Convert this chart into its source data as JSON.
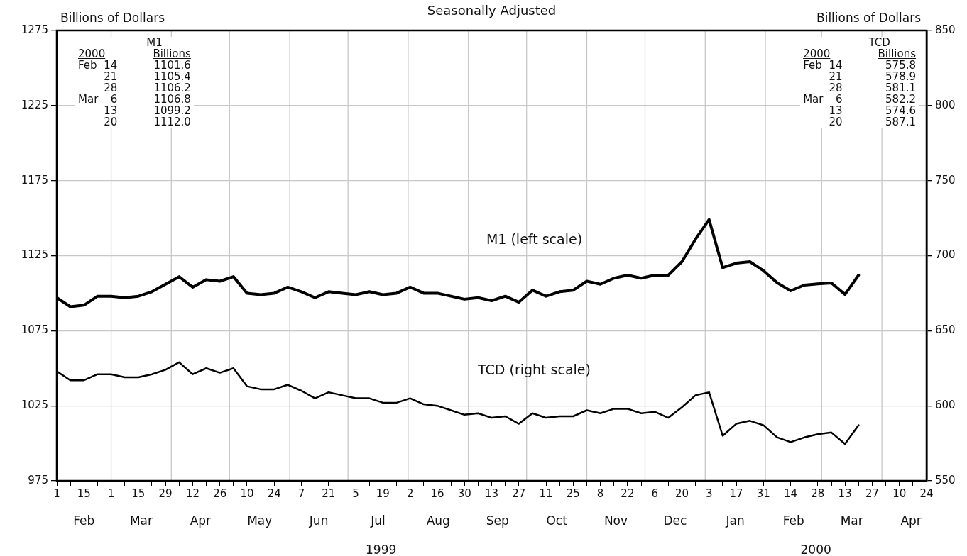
{
  "chart_data": {
    "type": "line",
    "title": "Seasonally Adjusted",
    "ylabel": "Billions of Dollars",
    "y2label": "Billions of Dollars",
    "legend": false,
    "grid": "y",
    "marker": "none",
    "line_style": "solid",
    "x": [
      "1999-02-01",
      "1999-02-08",
      "1999-02-15",
      "1999-02-22",
      "1999-03-01",
      "1999-03-08",
      "1999-03-15",
      "1999-03-22",
      "1999-03-29",
      "1999-04-05",
      "1999-04-12",
      "1999-04-19",
      "1999-04-26",
      "1999-05-03",
      "1999-05-10",
      "1999-05-17",
      "1999-05-24",
      "1999-05-31",
      "1999-06-07",
      "1999-06-14",
      "1999-06-21",
      "1999-06-28",
      "1999-07-05",
      "1999-07-12",
      "1999-07-19",
      "1999-07-26",
      "1999-08-02",
      "1999-08-09",
      "1999-08-16",
      "1999-08-23",
      "1999-08-30",
      "1999-09-06",
      "1999-09-13",
      "1999-09-20",
      "1999-09-27",
      "1999-10-04",
      "1999-10-11",
      "1999-10-18",
      "1999-10-25",
      "1999-11-01",
      "1999-11-08",
      "1999-11-15",
      "1999-11-22",
      "1999-11-29",
      "1999-12-06",
      "1999-12-13",
      "1999-12-20",
      "1999-12-27",
      "2000-01-03",
      "2000-01-10",
      "2000-01-17",
      "2000-01-24",
      "2000-01-31",
      "2000-02-07",
      "2000-02-14",
      "2000-02-21",
      "2000-02-28",
      "2000-03-06",
      "2000-03-13",
      "2000-03-20"
    ],
    "series": [
      {
        "name": "M1 (left scale)",
        "color": "#000000",
        "axis": "y",
        "values": [
          1097,
          1091,
          1092,
          1098,
          1098,
          1097,
          1098,
          1101,
          1106,
          1111,
          1104,
          1109,
          1108,
          1111,
          1100,
          1099,
          1100,
          1104,
          1101,
          1097,
          1101,
          1100,
          1099,
          1101,
          1099,
          1100,
          1104,
          1100,
          1100,
          1098,
          1096,
          1097,
          1095,
          1098,
          1094,
          1102,
          1098,
          1101,
          1102,
          1108,
          1106,
          1110,
          1112,
          1110,
          1112,
          1112,
          1121,
          1136,
          1149,
          1117,
          1120,
          1121,
          1115,
          1107,
          1101.6,
          1105.4,
          1106.2,
          1106.8,
          1099.2,
          1112.0
        ]
      },
      {
        "name": "TCD (right scale)",
        "color": "#000000",
        "axis": "y2",
        "values": [
          623,
          617,
          617,
          621,
          621,
          619,
          619,
          621,
          624,
          629,
          621,
          625,
          622,
          625,
          613,
          611,
          611,
          614,
          610,
          605,
          609,
          607,
          605,
          605,
          602,
          602,
          605,
          601,
          600,
          597,
          594,
          595,
          592,
          593,
          588,
          595,
          592,
          593,
          593,
          597,
          595,
          598,
          598,
          595,
          596,
          592,
          599,
          607,
          609,
          580,
          588,
          590,
          587,
          579,
          575.8,
          578.9,
          581.1,
          582.2,
          574.6,
          587.1
        ]
      }
    ],
    "xlim": [
      "1999-02-01",
      "2000-04-24"
    ],
    "xticks": [
      {
        "value": "1999-02-01",
        "label": "1"
      },
      {
        "value": "1999-02-08",
        "label": null
      },
      {
        "value": "1999-02-15",
        "label": "15"
      },
      {
        "value": "1999-02-22",
        "label": null
      },
      {
        "value": "1999-03-01",
        "label": "1"
      },
      {
        "value": "1999-03-08",
        "label": null
      },
      {
        "value": "1999-03-15",
        "label": "15"
      },
      {
        "value": "1999-03-22",
        "label": null
      },
      {
        "value": "1999-03-29",
        "label": "29"
      },
      {
        "value": "1999-04-05",
        "label": null
      },
      {
        "value": "1999-04-12",
        "label": "12"
      },
      {
        "value": "1999-04-19",
        "label": null
      },
      {
        "value": "1999-04-26",
        "label": "26"
      },
      {
        "value": "1999-05-03",
        "label": null
      },
      {
        "value": "1999-05-10",
        "label": "10"
      },
      {
        "value": "1999-05-17",
        "label": null
      },
      {
        "value": "1999-05-24",
        "label": "24"
      },
      {
        "value": "1999-05-31",
        "label": null
      },
      {
        "value": "1999-06-07",
        "label": "7"
      },
      {
        "value": "1999-06-14",
        "label": null
      },
      {
        "value": "1999-06-21",
        "label": "21"
      },
      {
        "value": "1999-06-28",
        "label": null
      },
      {
        "value": "1999-07-05",
        "label": "5"
      },
      {
        "value": "1999-07-12",
        "label": null
      },
      {
        "value": "1999-07-19",
        "label": "19"
      },
      {
        "value": "1999-07-26",
        "label": null
      },
      {
        "value": "1999-08-02",
        "label": "2"
      },
      {
        "value": "1999-08-09",
        "label": null
      },
      {
        "value": "1999-08-16",
        "label": "16"
      },
      {
        "value": "1999-08-23",
        "label": null
      },
      {
        "value": "1999-08-30",
        "label": "30"
      },
      {
        "value": "1999-09-06",
        "label": null
      },
      {
        "value": "1999-09-13",
        "label": "13"
      },
      {
        "value": "1999-09-20",
        "label": null
      },
      {
        "value": "1999-09-27",
        "label": "27"
      },
      {
        "value": "1999-10-04",
        "label": null
      },
      {
        "value": "1999-10-11",
        "label": "11"
      },
      {
        "value": "1999-10-18",
        "label": null
      },
      {
        "value": "1999-10-25",
        "label": "25"
      },
      {
        "value": "1999-11-01",
        "label": null
      },
      {
        "value": "1999-11-08",
        "label": "8"
      },
      {
        "value": "1999-11-15",
        "label": null
      },
      {
        "value": "1999-11-22",
        "label": "22"
      },
      {
        "value": "1999-11-29",
        "label": null
      },
      {
        "value": "1999-12-06",
        "label": "6"
      },
      {
        "value": "1999-12-13",
        "label": null
      },
      {
        "value": "1999-12-20",
        "label": "20"
      },
      {
        "value": "1999-12-27",
        "label": null
      },
      {
        "value": "2000-01-03",
        "label": "3"
      },
      {
        "value": "2000-01-10",
        "label": null
      },
      {
        "value": "2000-01-17",
        "label": "17"
      },
      {
        "value": "2000-01-24",
        "label": null
      },
      {
        "value": "2000-01-31",
        "label": "31"
      },
      {
        "value": "2000-02-07",
        "label": null
      },
      {
        "value": "2000-02-14",
        "label": "14"
      },
      {
        "value": "2000-02-21",
        "label": null
      },
      {
        "value": "2000-02-28",
        "label": "28"
      },
      {
        "value": "2000-03-06",
        "label": null
      },
      {
        "value": "2000-03-13",
        "label": "13"
      },
      {
        "value": "2000-03-20",
        "label": null
      },
      {
        "value": "2000-03-27",
        "label": "27"
      },
      {
        "value": "2000-04-03",
        "label": null
      },
      {
        "value": "2000-04-10",
        "label": "10"
      },
      {
        "value": "2000-04-17",
        "label": null
      },
      {
        "value": "2000-04-24",
        "label": "24"
      }
    ],
    "ylim": [
      975,
      1275
    ],
    "yticks": [
      975,
      1025,
      1075,
      1125,
      1175,
      1225,
      1275
    ],
    "y2lim": [
      550,
      850
    ],
    "y2ticks": [
      550,
      600,
      650,
      700,
      750,
      800,
      850
    ],
    "ref_lines": [
      {
        "axis": "x",
        "value": "1999-03-01",
        "color": "#c8c8c8"
      },
      {
        "axis": "x",
        "value": "1999-04-01",
        "color": "#c8c8c8"
      },
      {
        "axis": "x",
        "value": "1999-05-01",
        "color": "#c8c8c8"
      },
      {
        "axis": "x",
        "value": "1999-06-01",
        "color": "#c8c8c8"
      },
      {
        "axis": "x",
        "value": "1999-07-01",
        "color": "#c8c8c8"
      },
      {
        "axis": "x",
        "value": "1999-08-01",
        "color": "#c8c8c8"
      },
      {
        "axis": "x",
        "value": "1999-09-01",
        "color": "#c8c8c8"
      },
      {
        "axis": "x",
        "value": "1999-10-01",
        "color": "#c8c8c8"
      },
      {
        "axis": "x",
        "value": "1999-11-01",
        "color": "#c8c8c8"
      },
      {
        "axis": "x",
        "value": "1999-12-01",
        "color": "#c8c8c8"
      },
      {
        "axis": "x",
        "value": "2000-01-01",
        "color": "#c8c8c8"
      },
      {
        "axis": "x",
        "value": "2000-02-01",
        "color": "#c8c8c8"
      },
      {
        "axis": "x",
        "value": "2000-03-01",
        "color": "#c8c8c8"
      },
      {
        "axis": "x",
        "value": "2000-04-01",
        "color": "#c8c8c8"
      }
    ],
    "annotations": [
      "M1\n2000\tBillions\nFeb\t14\t1101.6\n\t21\t1105.4\n\t28\t1106.2\nMar\t6\t1106.8\n\t13\t1099.2\n\t20\t1112.0",
      "TCD\n2000\tBillions\nFeb\t14\t575.8\n\t21\t578.9\n\t28\t581.1\nMar\t6\t582.2\n\t13\t574.6\n\t20\t587.1",
      "Feb",
      "Mar",
      "Apr",
      "May",
      "Jun",
      "Jul",
      "Aug",
      "Sep",
      "Oct",
      "Nov",
      "Dec",
      "Jan",
      "Feb",
      "Mar",
      "Apr",
      "1999",
      "2000"
    ]
  }
}
